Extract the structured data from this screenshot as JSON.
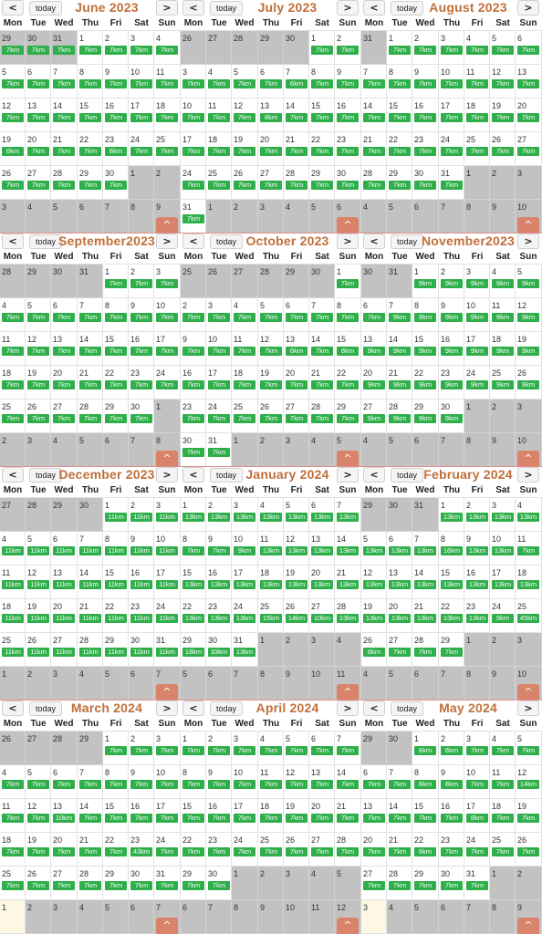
{
  "weekdays": [
    "Mon",
    "Tue",
    "Wed",
    "Thu",
    "Fri",
    "Sat",
    "Sun"
  ],
  "nav": {
    "prev": "<",
    "next": ">",
    "today": "today",
    "scroll_top": "^"
  },
  "colors": {
    "title": "#c0703a",
    "event": "#2eaf4a",
    "scroll_button": "#d9836a",
    "other_month": "#c2c2c2",
    "today_highlight": "#fcf8e3"
  },
  "months": [
    {
      "title": "June 2023",
      "first": 29,
      "prevLen": 31,
      "len": 30,
      "today": null,
      "events": [
        [
          "7km",
          "7km",
          "7km",
          "7km",
          "7km",
          "7km",
          "7km"
        ],
        [
          "7km",
          "7km",
          "7km",
          "7km",
          "7km",
          "7km",
          "7km"
        ],
        [
          "7km",
          "7km",
          "7km",
          "7km",
          "7km",
          "7km",
          "7km"
        ],
        [
          "6km",
          "7km",
          "7km",
          "7km",
          "8km",
          "7km",
          "7km"
        ],
        [
          "7km",
          "7km",
          "7km",
          "7km",
          "7km",
          "",
          ""
        ],
        [
          "",
          "",
          "",
          "",
          "",
          "",
          ""
        ]
      ]
    },
    {
      "title": "July 2023",
      "first": 26,
      "prevLen": 30,
      "len": 31,
      "today": null,
      "events": [
        [
          "",
          "",
          "",
          "",
          "",
          "7km",
          "7km"
        ],
        [
          "7km",
          "7km",
          "7km",
          "7km",
          "6km",
          "7km",
          "7km"
        ],
        [
          "7km",
          "7km",
          "7km",
          "8km",
          "7km",
          "7km",
          "7km"
        ],
        [
          "7km",
          "7km",
          "7km",
          "7km",
          "7km",
          "7km",
          "7km"
        ],
        [
          "7km",
          "7km",
          "7km",
          "7km",
          "7km",
          "7km",
          "7km"
        ],
        [
          "7km",
          "",
          "",
          "",
          "",
          "",
          ""
        ]
      ]
    },
    {
      "title": "August 2023",
      "first": 31,
      "prevLen": 31,
      "len": 31,
      "today": null,
      "events": [
        [
          "",
          "7km",
          "7km",
          "7km",
          "7km",
          "7km",
          "7km"
        ],
        [
          "7km",
          "7km",
          "7km",
          "7km",
          "7km",
          "7km",
          "7km"
        ],
        [
          "7km",
          "7km",
          "7km",
          "7km",
          "7km",
          "7km",
          "7km"
        ],
        [
          "7km",
          "7km",
          "7km",
          "7km",
          "7km",
          "7km",
          "7km"
        ],
        [
          "7km",
          "7km",
          "7km",
          "7km",
          "",
          "",
          ""
        ],
        [
          "",
          "",
          "",
          "",
          "",
          "",
          ""
        ]
      ]
    },
    {
      "title": "September2023",
      "first": 28,
      "prevLen": 31,
      "len": 30,
      "today": null,
      "events": [
        [
          "",
          "",
          "",
          "",
          "7km",
          "7km",
          "7km"
        ],
        [
          "7km",
          "7km",
          "7km",
          "7km",
          "7km",
          "7km",
          "7km"
        ],
        [
          "7km",
          "7km",
          "7km",
          "7km",
          "7km",
          "7km",
          "7km"
        ],
        [
          "7km",
          "7km",
          "7km",
          "7km",
          "7km",
          "7km",
          "7km"
        ],
        [
          "7km",
          "7km",
          "7km",
          "7km",
          "7km",
          "7km",
          ""
        ],
        [
          "",
          "",
          "",
          "",
          "",
          "",
          ""
        ]
      ]
    },
    {
      "title": "October 2023",
      "first": 25,
      "prevLen": 30,
      "len": 31,
      "today": null,
      "events": [
        [
          "",
          "",
          "",
          "",
          "",
          "",
          "7km"
        ],
        [
          "7km",
          "7km",
          "7km",
          "7km",
          "7km",
          "7km",
          "7km"
        ],
        [
          "7km",
          "7km",
          "7km",
          "7km",
          "6km",
          "7km",
          "8km"
        ],
        [
          "7km",
          "7km",
          "7km",
          "7km",
          "7km",
          "7km",
          "7km"
        ],
        [
          "7km",
          "7km",
          "7km",
          "7km",
          "7km",
          "7km",
          "7km"
        ],
        [
          "7km",
          "7km",
          "",
          "",
          "",
          "",
          ""
        ]
      ]
    },
    {
      "title": "November2023",
      "first": 30,
      "prevLen": 31,
      "len": 30,
      "today": null,
      "events": [
        [
          "",
          "",
          "9km",
          "9km",
          "9km",
          "9km",
          "9km"
        ],
        [
          "7km",
          "9km",
          "9km",
          "9km",
          "9km",
          "9km",
          "9km"
        ],
        [
          "9km",
          "9km",
          "9km",
          "9km",
          "9km",
          "9km",
          "9km"
        ],
        [
          "9km",
          "9km",
          "9km",
          "9km",
          "9km",
          "9km",
          "9km"
        ],
        [
          "9km",
          "9km",
          "9km",
          "9km",
          "",
          "",
          ""
        ],
        [
          "",
          "",
          "",
          "",
          "",
          "",
          ""
        ]
      ]
    },
    {
      "title": "December 2023",
      "first": 27,
      "prevLen": 30,
      "len": 31,
      "today": null,
      "events": [
        [
          "",
          "",
          "",
          "",
          "11km",
          "11km",
          "11km"
        ],
        [
          "11km",
          "11km",
          "11km",
          "11km",
          "11km",
          "11km",
          "11km"
        ],
        [
          "11km",
          "11km",
          "11km",
          "11km",
          "11km",
          "11km",
          "11km"
        ],
        [
          "11km",
          "11km",
          "11km",
          "11km",
          "11km",
          "11km",
          "11km"
        ],
        [
          "11km",
          "11km",
          "11km",
          "11km",
          "11km",
          "11km",
          "11km"
        ],
        [
          "",
          "",
          "",
          "",
          "",
          "",
          ""
        ]
      ]
    },
    {
      "title": "January 2024",
      "first": 1,
      "prevLen": 31,
      "len": 31,
      "today": null,
      "events": [
        [
          "13km",
          "13km",
          "13km",
          "13km",
          "13km",
          "13km",
          "13km"
        ],
        [
          "7km",
          "7km",
          "9km",
          "13km",
          "13km",
          "13km",
          "13km"
        ],
        [
          "13km",
          "13km",
          "13km",
          "13km",
          "13km",
          "13km",
          "13km"
        ],
        [
          "13km",
          "13km",
          "13km",
          "15km",
          "14km",
          "10km",
          "13km"
        ],
        [
          "18km",
          "33km",
          "13km",
          "",
          "",
          "",
          ""
        ],
        [
          "",
          "",
          "",
          "",
          "",
          "",
          ""
        ]
      ]
    },
    {
      "title": "February 2024",
      "first": 29,
      "prevLen": 31,
      "len": 29,
      "today": null,
      "events": [
        [
          "",
          "",
          "",
          "13km",
          "13km",
          "13km",
          "13km"
        ],
        [
          "13km",
          "13km",
          "13km",
          "16km",
          "13km",
          "13km",
          "7km"
        ],
        [
          "13km",
          "13km",
          "13km",
          "13km",
          "13km",
          "13km",
          "13km"
        ],
        [
          "13km",
          "13km",
          "13km",
          "13km",
          "13km",
          "9km",
          "45km"
        ],
        [
          "8km",
          "7km",
          "7km",
          "7km",
          "",
          "",
          ""
        ],
        [
          "",
          "",
          "",
          "",
          "",
          "",
          ""
        ]
      ]
    },
    {
      "title": "March 2024",
      "first": 26,
      "prevLen": 29,
      "len": 31,
      "today": 1,
      "events": [
        [
          "",
          "",
          "",
          "",
          "7km",
          "7km",
          "7km"
        ],
        [
          "7km",
          "7km",
          "7km",
          "7km",
          "7km",
          "7km",
          "7km"
        ],
        [
          "7km",
          "7km",
          "10km",
          "7km",
          "7km",
          "7km",
          "7km"
        ],
        [
          "7km",
          "7km",
          "7km",
          "7km",
          "7km",
          "43km",
          "7km"
        ],
        [
          "7km",
          "7km",
          "7km",
          "7km",
          "7km",
          "7km",
          "7km"
        ],
        [
          "",
          "",
          "",
          "",
          "",
          "",
          ""
        ]
      ]
    },
    {
      "title": "April 2024",
      "first": 1,
      "prevLen": 31,
      "len": 30,
      "today": null,
      "events": [
        [
          "7km",
          "7km",
          "7km",
          "7km",
          "7km",
          "7km",
          "7km"
        ],
        [
          "7km",
          "7km",
          "7km",
          "7km",
          "7km",
          "7km",
          "7km"
        ],
        [
          "7km",
          "7km",
          "7km",
          "7km",
          "7km",
          "7km",
          "7km"
        ],
        [
          "7km",
          "7km",
          "7km",
          "7km",
          "7km",
          "7km",
          "7km"
        ],
        [
          "7km",
          "7km",
          "",
          "",
          "",
          "",
          ""
        ],
        [
          "",
          "",
          "",
          "",
          "",
          "",
          ""
        ]
      ]
    },
    {
      "title": "May 2024",
      "first": 29,
      "prevLen": 30,
      "len": 31,
      "today": 3,
      "events": [
        [
          "",
          "",
          "6km",
          "8km",
          "7km",
          "7km",
          "7km"
        ],
        [
          "7km",
          "7km",
          "8km",
          "8km",
          "7km",
          "7km",
          "14km"
        ],
        [
          "7km",
          "7km",
          "7km",
          "7km",
          "8km",
          "7km",
          "7km"
        ],
        [
          "7km",
          "7km",
          "6km",
          "7km",
          "7km",
          "7km",
          "7km"
        ],
        [
          "7km",
          "7km",
          "7km",
          "7km",
          "7km",
          "",
          ""
        ],
        [
          "",
          "",
          "",
          "",
          "",
          "",
          ""
        ]
      ]
    }
  ]
}
